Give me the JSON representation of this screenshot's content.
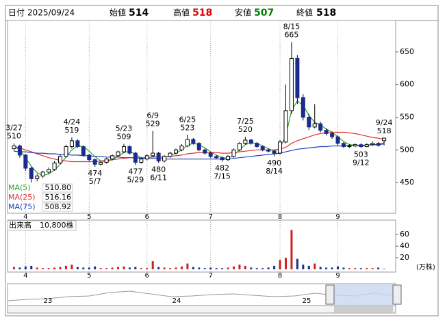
{
  "header": [
    {
      "label": "日付",
      "value": "2025/09/24",
      "color": "#000"
    },
    {
      "label": "始値",
      "value": 514,
      "color": "#000"
    },
    {
      "label": "高値",
      "value": 518,
      "color": "#e00000"
    },
    {
      "label": "安値",
      "value": 507,
      "color": "#008000"
    },
    {
      "label": "終値",
      "value": 518,
      "color": "#000"
    }
  ],
  "chart_data": {
    "type": "candlestick",
    "xlim": [
      -1,
      66
    ],
    "xticks": [
      {
        "value": 2,
        "label": "4"
      },
      {
        "value": 13,
        "label": "5"
      },
      {
        "value": 23,
        "label": "6"
      },
      {
        "value": 34,
        "label": "7"
      },
      {
        "value": 46,
        "label": "8"
      },
      {
        "value": 56,
        "label": "9"
      }
    ],
    "ylim": [
      403,
      698
    ],
    "yticks": [
      450,
      500,
      550,
      600,
      650
    ],
    "up_color": "#ffffff",
    "down_color": "#1b2b8f",
    "outline_color": "#000000",
    "candles": [
      [
        502,
        510,
        498,
        506
      ],
      [
        506,
        508,
        488,
        492
      ],
      [
        492,
        494,
        468,
        472
      ],
      [
        472,
        474,
        450,
        456
      ],
      [
        456,
        463,
        452,
        460
      ],
      [
        460,
        468,
        457,
        466
      ],
      [
        466,
        473,
        463,
        470
      ],
      [
        470,
        483,
        468,
        480
      ],
      [
        480,
        493,
        478,
        490
      ],
      [
        490,
        508,
        488,
        505
      ],
      [
        505,
        519,
        502,
        514
      ],
      [
        514,
        516,
        503,
        505
      ],
      [
        505,
        507,
        490,
        492
      ],
      [
        492,
        494,
        483,
        485
      ],
      [
        485,
        487,
        474,
        478
      ],
      [
        478,
        483,
        476,
        481
      ],
      [
        481,
        488,
        479,
        486
      ],
      [
        486,
        493,
        484,
        491
      ],
      [
        491,
        499,
        489,
        497
      ],
      [
        497,
        509,
        495,
        505
      ],
      [
        505,
        507,
        493,
        495
      ],
      [
        495,
        497,
        477,
        481
      ],
      [
        481,
        488,
        479,
        486
      ],
      [
        486,
        493,
        484,
        491
      ],
      [
        491,
        529,
        489,
        495
      ],
      [
        495,
        497,
        480,
        483
      ],
      [
        483,
        492,
        481,
        490
      ],
      [
        490,
        497,
        488,
        495
      ],
      [
        495,
        502,
        493,
        500
      ],
      [
        500,
        509,
        498,
        506
      ],
      [
        506,
        523,
        504,
        516
      ],
      [
        516,
        518,
        508,
        510
      ],
      [
        510,
        512,
        498,
        500
      ],
      [
        500,
        502,
        493,
        495
      ],
      [
        495,
        497,
        488,
        490
      ],
      [
        490,
        492,
        486,
        488
      ],
      [
        488,
        490,
        482,
        485
      ],
      [
        485,
        492,
        483,
        490
      ],
      [
        490,
        502,
        488,
        500
      ],
      [
        500,
        512,
        498,
        510
      ],
      [
        510,
        520,
        508,
        515
      ],
      [
        515,
        517,
        508,
        510
      ],
      [
        510,
        512,
        503,
        505
      ],
      [
        505,
        507,
        498,
        500
      ],
      [
        500,
        502,
        496,
        498
      ],
      [
        498,
        500,
        490,
        495
      ],
      [
        495,
        515,
        493,
        512
      ],
      [
        512,
        600,
        510,
        560
      ],
      [
        560,
        665,
        555,
        640
      ],
      [
        640,
        645,
        570,
        580
      ],
      [
        580,
        585,
        545,
        550
      ],
      [
        550,
        555,
        530,
        535
      ],
      [
        535,
        570,
        533,
        540
      ],
      [
        540,
        543,
        527,
        530
      ],
      [
        530,
        533,
        522,
        525
      ],
      [
        525,
        528,
        517,
        520
      ],
      [
        520,
        522,
        507,
        510
      ],
      [
        510,
        512,
        503,
        505
      ],
      [
        505,
        509,
        503,
        506
      ],
      [
        506,
        510,
        504,
        508
      ],
      [
        508,
        510,
        503,
        505
      ],
      [
        505,
        510,
        504,
        508
      ],
      [
        508,
        513,
        506,
        510
      ],
      [
        510,
        512,
        505,
        507
      ],
      [
        514,
        518,
        507,
        518
      ]
    ],
    "ma": [
      {
        "name": "MA(5)",
        "legend_value": "510.80",
        "color": "#2ca02c",
        "values": [
          506,
          500,
          488,
          475,
          465,
          461,
          463,
          469,
          478,
          489,
          500,
          506,
          505,
          498,
          490,
          483,
          482,
          485,
          490,
          496,
          498,
          493,
          488,
          487,
          490,
          489,
          489,
          491,
          495,
          500,
          507,
          510,
          508,
          503,
          497,
          492,
          488,
          487,
          492,
          500,
          508,
          511,
          510,
          506,
          502,
          498,
          503,
          522,
          560,
          575,
          568,
          553,
          542,
          538,
          532,
          527,
          520,
          513,
          508,
          507,
          506,
          507,
          508,
          508,
          511
        ]
      },
      {
        "name": "MA(25)",
        "legend_value": "516.16",
        "color": "#e03030",
        "values": [
          505,
          503,
          500,
          497,
          494,
          491,
          488,
          486,
          484,
          483,
          482,
          482,
          482,
          482,
          482,
          483,
          484,
          485,
          486,
          487,
          488,
          488,
          488,
          488,
          489,
          489,
          489,
          490,
          491,
          492,
          494,
          495,
          496,
          496,
          496,
          496,
          495,
          495,
          496,
          497,
          498,
          499,
          500,
          500,
          500,
          500,
          501,
          504,
          510,
          514,
          517,
          520,
          523,
          525,
          526,
          527,
          527,
          527,
          526,
          525,
          523,
          521,
          519,
          518,
          516
        ]
      },
      {
        "name": "MA(75)",
        "legend_value": "508.92",
        "color": "#2040c0",
        "values": [
          498,
          497,
          497,
          496,
          495,
          495,
          494,
          494,
          493,
          493,
          492,
          492,
          491,
          491,
          490,
          490,
          489,
          489,
          489,
          488,
          488,
          488,
          487,
          487,
          487,
          487,
          486,
          486,
          486,
          486,
          486,
          486,
          486,
          486,
          486,
          486,
          486,
          486,
          487,
          488,
          489,
          490,
          491,
          492,
          493,
          494,
          495,
          497,
          499,
          501,
          502,
          503,
          504,
          505,
          505,
          506,
          506,
          506,
          507,
          507,
          507,
          507,
          508,
          508,
          509
        ]
      }
    ],
    "annotations": [
      {
        "index": 0,
        "label": "3/27",
        "value": 510,
        "pos": "above"
      },
      {
        "index": 10,
        "label": "4/24",
        "value": 519,
        "pos": "above"
      },
      {
        "index": 14,
        "label": "5/7",
        "value": 474,
        "pos": "below"
      },
      {
        "index": 19,
        "label": "5/23",
        "value": 509,
        "pos": "above"
      },
      {
        "index": 21,
        "label": "5/29",
        "value": 477,
        "pos": "below"
      },
      {
        "index": 24,
        "label": "6/9",
        "value": 529,
        "pos": "above"
      },
      {
        "index": 25,
        "label": "6/11",
        "value": 480,
        "pos": "below"
      },
      {
        "index": 30,
        "label": "6/25",
        "value": 523,
        "pos": "above"
      },
      {
        "index": 36,
        "label": "7/15",
        "value": 482,
        "pos": "below"
      },
      {
        "index": 40,
        "label": "7/25",
        "value": 520,
        "pos": "above"
      },
      {
        "index": 45,
        "label": "8/14",
        "value": 490,
        "pos": "below"
      },
      {
        "index": 48,
        "label": "8/15",
        "value": 665,
        "pos": "above"
      },
      {
        "index": 60,
        "label": "9/12",
        "value": 503,
        "pos": "below"
      },
      {
        "index": 64,
        "label": "9/24",
        "value": 518,
        "pos": "above"
      }
    ],
    "volume": {
      "label": "出来高",
      "current": "10,800株",
      "unit": "(万株)",
      "ylim": [
        0,
        85
      ],
      "yticks": [
        20,
        40,
        60
      ],
      "up_color": "#d02020",
      "down_color": "#1b2b8f",
      "values": [
        4,
        3,
        5,
        6,
        3,
        2,
        2,
        3,
        4,
        6,
        8,
        4,
        3,
        3,
        5,
        2,
        2,
        3,
        4,
        5,
        3,
        4,
        2,
        2,
        14,
        4,
        3,
        2,
        3,
        5,
        10,
        4,
        3,
        2,
        3,
        2,
        2,
        3,
        5,
        8,
        6,
        3,
        2,
        2,
        3,
        6,
        16,
        20,
        68,
        18,
        8,
        6,
        10,
        4,
        3,
        3,
        5,
        3,
        2,
        2,
        2,
        2,
        2,
        3,
        1.08
      ]
    }
  },
  "navigator": {
    "labels": [
      "23",
      "24",
      "25"
    ]
  }
}
